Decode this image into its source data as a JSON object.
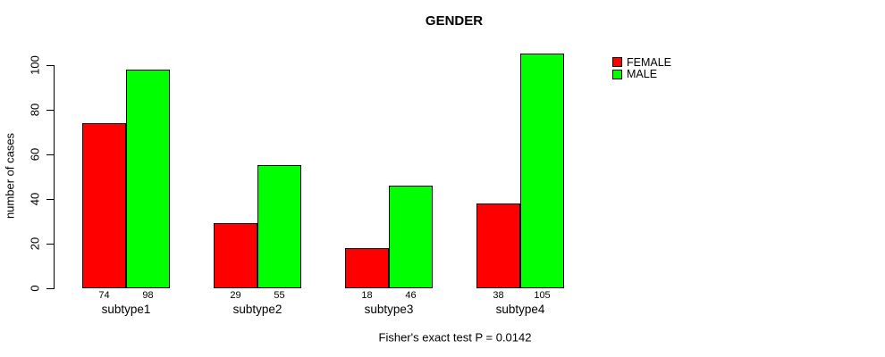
{
  "chart_data": {
    "type": "bar",
    "title": "GENDER",
    "xlabel": "",
    "ylabel": "number of cases",
    "categories": [
      "subtype1",
      "subtype2",
      "subtype3",
      "subtype4"
    ],
    "series": [
      {
        "name": "FEMALE",
        "color": "#ff0000",
        "values": [
          74,
          29,
          18,
          38
        ]
      },
      {
        "name": "MALE",
        "color": "#00ff00",
        "values": [
          98,
          55,
          46,
          105
        ]
      }
    ],
    "bar_value_labels": [
      [
        74,
        98
      ],
      [
        29,
        55
      ],
      [
        18,
        46
      ],
      [
        38,
        105
      ]
    ],
    "yticks": [
      0,
      20,
      40,
      60,
      80,
      100
    ],
    "ylim": [
      0,
      100
    ],
    "grid": false,
    "legend_position": "top-right",
    "annotation": "Fisher's exact test P = 0.0142"
  }
}
